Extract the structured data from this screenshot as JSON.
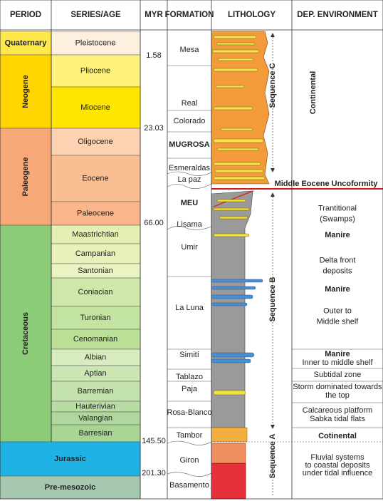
{
  "header": [
    "PERIOD",
    "SERIES/AGE",
    "MYR",
    "FORMATION",
    "LITHOLOGY",
    "DEP. ENVIRONMENT"
  ],
  "periods": [
    "Quaternary",
    "Neogene",
    "Paleogene",
    "Cretaceous",
    "Jurassic",
    "Pre-mesozoic"
  ],
  "series": [
    "Pleistocene",
    "Pliocene",
    "Miocene",
    "Oligocene",
    "Eocene",
    "Paleocene",
    "Maastrichtian",
    "Campanian",
    "Santonian",
    "Coniacian",
    "Turonian",
    "Cenomanian",
    "Albian",
    "Aptian",
    "Barremian",
    "Hauterivian",
    "Valangian",
    "Barresian"
  ],
  "myr": [
    "1.58",
    "23.03",
    "66.00",
    "145.50",
    "201.30"
  ],
  "formations": [
    "Mesa",
    "Real",
    "Colorado",
    "MUGROSA",
    "Esmeraldas",
    "La paz",
    "MEU",
    "Lisama",
    "Umir",
    "La Luna",
    "Simití",
    "Tablazo",
    "Paja",
    "Rosa-Blanco",
    "Tambor",
    "Giron",
    "Basamento"
  ],
  "sequences": [
    "Sequence C",
    "Sequence B",
    "Sequence A"
  ],
  "unconformity": "Middle Eocene Uncoformity",
  "environments": [
    [
      "Continental"
    ],
    [
      "Trantitional",
      "(Swamps)"
    ],
    [
      "Manire"
    ],
    [
      "Delta front",
      "deposits"
    ],
    [
      "Manire"
    ],
    [
      "Outer to",
      "Middle shelf"
    ],
    [
      "Manire"
    ],
    [
      "Inner to middle shelf"
    ],
    [
      "Subtidal zone"
    ],
    [
      "Storm dominated towards",
      "the top"
    ],
    [
      "Calcareous platform",
      "Sabka tidal flats"
    ],
    [
      "Cotinental"
    ],
    [
      "Fluvial systems",
      "to coastal deposits",
      "under tidal influence"
    ]
  ]
}
